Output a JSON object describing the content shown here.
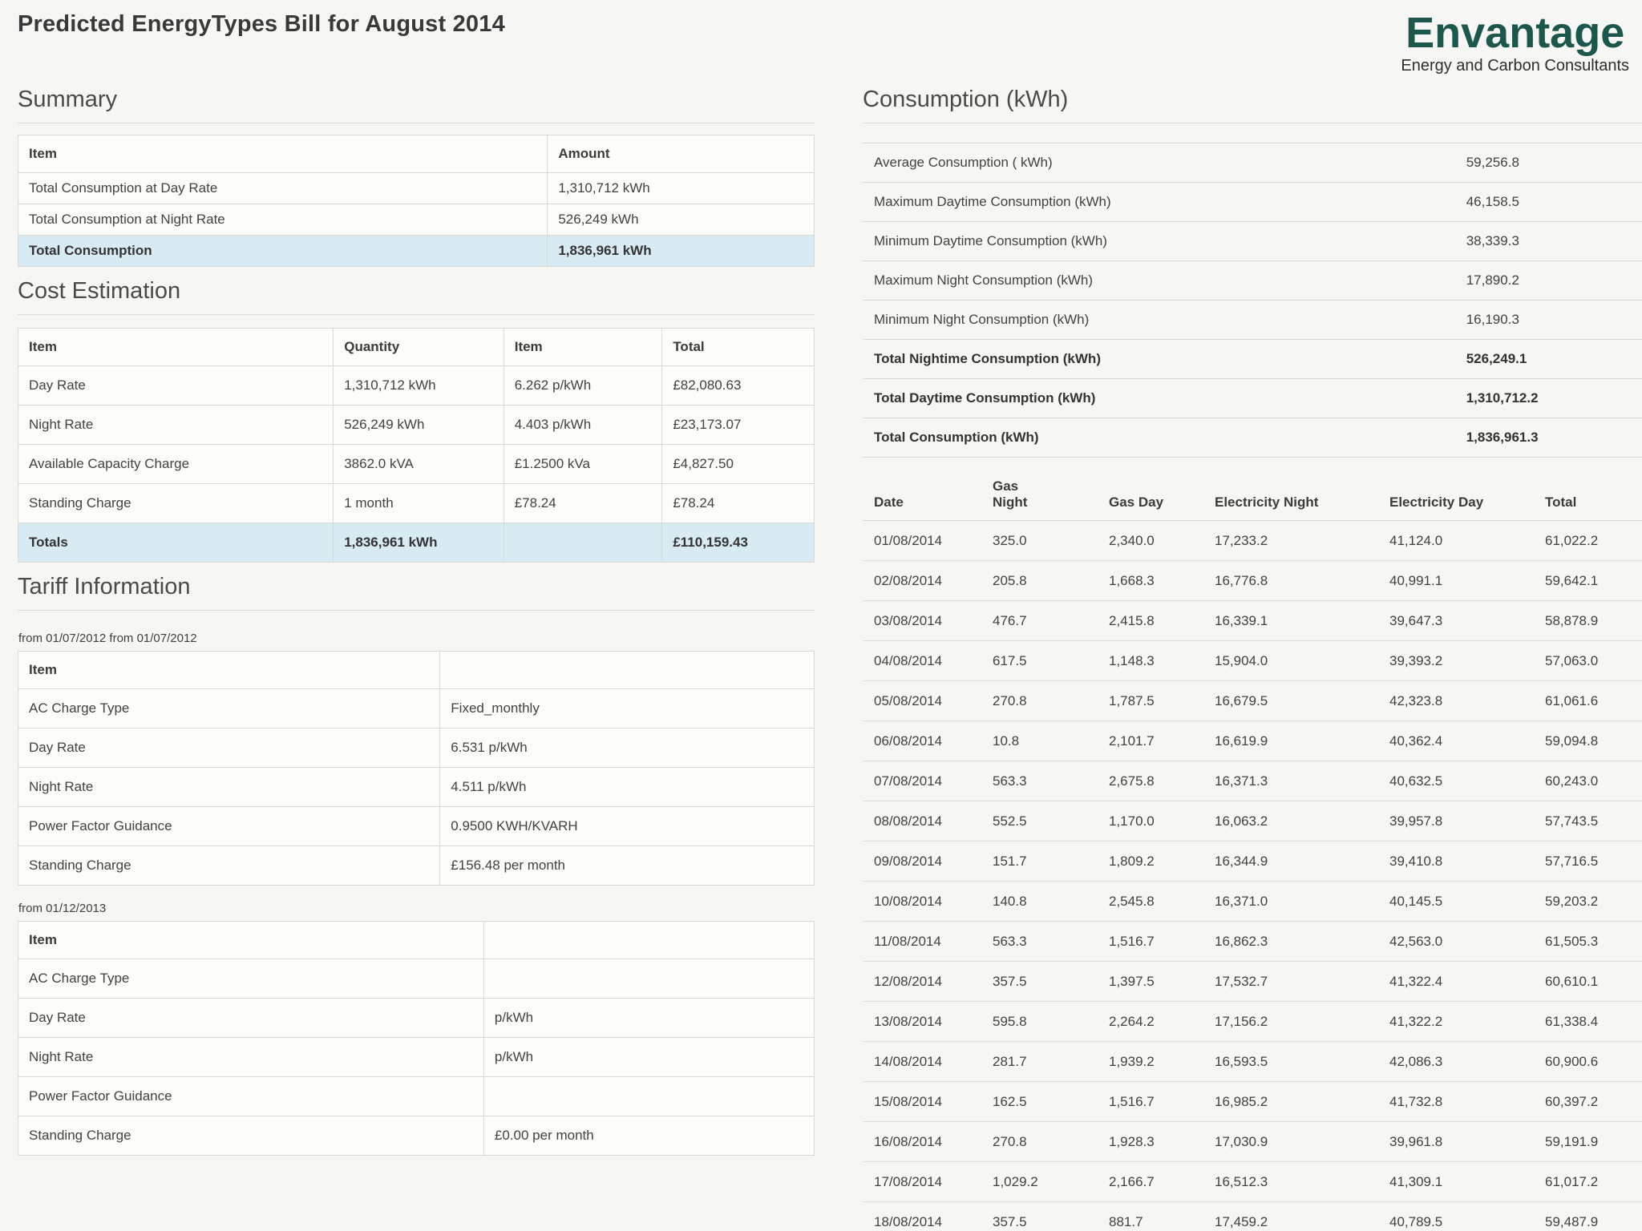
{
  "page": {
    "title": "Predicted EnergyTypes Bill for August 2014"
  },
  "logo": {
    "name": "Envantage",
    "tagline": "Energy and Carbon Consultants"
  },
  "colors": {
    "logo": "#1c564c",
    "highlight": "#d8eaf2"
  },
  "summary": {
    "heading": "Summary",
    "columns": [
      "Item",
      "Amount"
    ],
    "rows": [
      [
        "Total Consumption at Day Rate",
        "1,310,712 kWh"
      ],
      [
        "Total Consumption at Night Rate",
        "526,249 kWh"
      ],
      [
        "Total Consumption",
        "1,836,961 kWh"
      ]
    ]
  },
  "cost_estimation": {
    "heading": "Cost Estimation",
    "columns": [
      "Item",
      "Quantity",
      "Item",
      "Total"
    ],
    "rows": [
      [
        "Day Rate",
        "1,310,712 kWh",
        "6.262 p/kWh",
        "£82,080.63"
      ],
      [
        "Night Rate",
        "526,249 kWh",
        "4.403 p/kWh",
        "£23,173.07"
      ],
      [
        "Available Capacity Charge",
        "3862.0 kVA",
        "£1.2500 kVa",
        "£4,827.50"
      ],
      [
        "Standing Charge",
        "1 month",
        "£78.24",
        "£78.24"
      ],
      [
        "Totals",
        "1,836,961 kWh",
        "",
        "£110,159.43"
      ]
    ]
  },
  "tariff_information": {
    "heading": "Tariff Information",
    "header_item": "Item",
    "tables": [
      {
        "caption": "from 01/07/2012 from 01/07/2012",
        "rows": [
          [
            "AC Charge Type",
            "Fixed_monthly"
          ],
          [
            "Day Rate",
            "6.531 p/kWh"
          ],
          [
            "Night Rate",
            "4.511 p/kWh"
          ],
          [
            "Power Factor Guidance",
            "0.9500 KWH/KVARH"
          ],
          [
            "Standing Charge",
            "£156.48 per month"
          ]
        ]
      },
      {
        "caption": "from 01/12/2013",
        "rows": [
          [
            "AC Charge Type",
            ""
          ],
          [
            "Day Rate",
            "p/kWh"
          ],
          [
            "Night Rate",
            "p/kWh"
          ],
          [
            "Power Factor Guidance",
            ""
          ],
          [
            "Standing Charge",
            "£0.00 per month"
          ]
        ]
      }
    ]
  },
  "consumption": {
    "heading": "Consumption (kWh)",
    "stats": [
      [
        "Average Consumption ( kWh)",
        "59,256.8"
      ],
      [
        "Maximum Daytime Consumption (kWh)",
        "46,158.5"
      ],
      [
        "Minimum Daytime Consumption (kWh)",
        "38,339.3"
      ],
      [
        "Maximum Night Consumption (kWh)",
        "17,890.2"
      ],
      [
        "Minimum Night Consumption (kWh)",
        "16,190.3"
      ],
      [
        "Total Nightime Consumption (kWh)",
        "526,249.1"
      ],
      [
        "Total Daytime Consumption (kWh)",
        "1,310,712.2"
      ],
      [
        "Total Consumption (kWh)",
        "1,836,961.3"
      ]
    ],
    "daily": {
      "columns": [
        "Date",
        "Gas Night",
        "Gas Day",
        "Electricity Night",
        "Electricity Day",
        "Total"
      ],
      "rows": [
        [
          "01/08/2014",
          "325.0",
          "2,340.0",
          "17,233.2",
          "41,124.0",
          "61,022.2"
        ],
        [
          "02/08/2014",
          "205.8",
          "1,668.3",
          "16,776.8",
          "40,991.1",
          "59,642.1"
        ],
        [
          "03/08/2014",
          "476.7",
          "2,415.8",
          "16,339.1",
          "39,647.3",
          "58,878.9"
        ],
        [
          "04/08/2014",
          "617.5",
          "1,148.3",
          "15,904.0",
          "39,393.2",
          "57,063.0"
        ],
        [
          "05/08/2014",
          "270.8",
          "1,787.5",
          "16,679.5",
          "42,323.8",
          "61,061.6"
        ],
        [
          "06/08/2014",
          "10.8",
          "2,101.7",
          "16,619.9",
          "40,362.4",
          "59,094.8"
        ],
        [
          "07/08/2014",
          "563.3",
          "2,675.8",
          "16,371.3",
          "40,632.5",
          "60,243.0"
        ],
        [
          "08/08/2014",
          "552.5",
          "1,170.0",
          "16,063.2",
          "39,957.8",
          "57,743.5"
        ],
        [
          "09/08/2014",
          "151.7",
          "1,809.2",
          "16,344.9",
          "39,410.8",
          "57,716.5"
        ],
        [
          "10/08/2014",
          "140.8",
          "2,545.8",
          "16,371.0",
          "40,145.5",
          "59,203.2"
        ],
        [
          "11/08/2014",
          "563.3",
          "1,516.7",
          "16,862.3",
          "42,563.0",
          "61,505.3"
        ],
        [
          "12/08/2014",
          "357.5",
          "1,397.5",
          "17,532.7",
          "41,322.4",
          "60,610.1"
        ],
        [
          "13/08/2014",
          "595.8",
          "2,264.2",
          "17,156.2",
          "41,322.2",
          "61,338.4"
        ],
        [
          "14/08/2014",
          "281.7",
          "1,939.2",
          "16,593.5",
          "42,086.3",
          "60,900.6"
        ],
        [
          "15/08/2014",
          "162.5",
          "1,516.7",
          "16,985.2",
          "41,732.8",
          "60,397.2"
        ],
        [
          "16/08/2014",
          "270.8",
          "1,928.3",
          "17,030.9",
          "39,961.8",
          "59,191.9"
        ],
        [
          "17/08/2014",
          "1,029.2",
          "2,166.7",
          "16,512.3",
          "41,309.1",
          "61,017.2"
        ],
        [
          "18/08/2014",
          "357.5",
          "881.7",
          "17,459.2",
          "40,789.5",
          "59,487.9"
        ]
      ]
    }
  }
}
